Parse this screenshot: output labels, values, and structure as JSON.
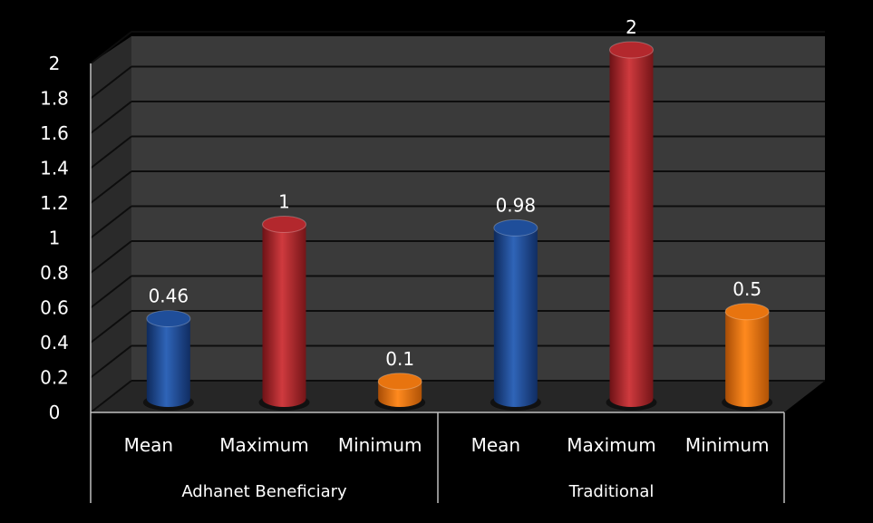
{
  "chart_data": {
    "type": "bar",
    "style": "3d-cylinder",
    "groups": [
      {
        "name": "Adhanet Beneficiary",
        "categories": [
          "Mean",
          "Maximum",
          "Minimum"
        ],
        "values": [
          0.46,
          1,
          0.1
        ]
      },
      {
        "name": "Traditional",
        "categories": [
          "Mean",
          "Maximum",
          "Minimum"
        ],
        "values": [
          0.98,
          2,
          0.5
        ]
      }
    ],
    "data_labels": [
      [
        "0.46",
        "1",
        "0.1"
      ],
      [
        "0.98",
        "2",
        "0.5"
      ]
    ],
    "category_colors": {
      "Mean": "#1f4e9a",
      "Maximum": "#b3282d",
      "Minimum": "#e8740f"
    },
    "y_ticks": [
      "0",
      "0.2",
      "0.4",
      "0.6",
      "0.8",
      "1",
      "1.2",
      "1.4",
      "1.6",
      "1.8",
      "2"
    ],
    "ylim": [
      0,
      2
    ],
    "grid": true,
    "background": "#000000",
    "wall_color": "#3a3a3a",
    "grid_color": "#0d0d0d"
  }
}
